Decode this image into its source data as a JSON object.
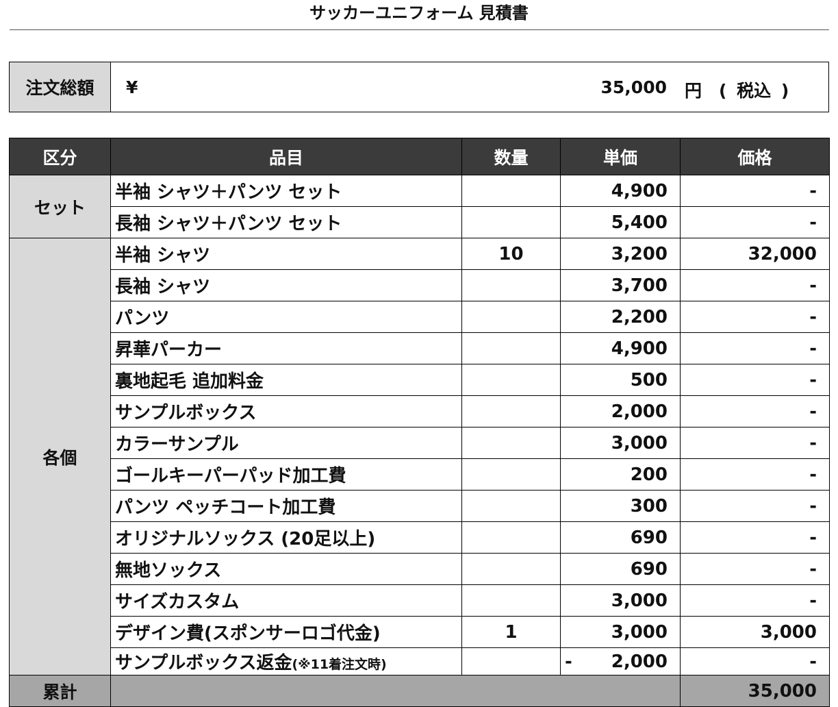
{
  "title": "サッカーユニフォーム 見積書",
  "total": {
    "label": "注文総額",
    "currency": "¥",
    "amount": "35,000",
    "unit": "円",
    "tax_note": "( 税込 )"
  },
  "table": {
    "headers": [
      "区分",
      "品目",
      "数量",
      "単価",
      "価格"
    ],
    "groups": [
      {
        "category": "セット",
        "rows": [
          {
            "item": "半袖 シャツ＋パンツ セット",
            "note": "",
            "qty": "",
            "neg": "",
            "unit_price": "4,900",
            "price": "-"
          },
          {
            "item": "長袖 シャツ＋パンツ セット",
            "note": "",
            "qty": "",
            "neg": "",
            "unit_price": "5,400",
            "price": "-"
          }
        ]
      },
      {
        "category": "各個",
        "rows": [
          {
            "item": "半袖 シャツ",
            "note": "",
            "qty": "10",
            "neg": "",
            "unit_price": "3,200",
            "price": "32,000"
          },
          {
            "item": "長袖 シャツ",
            "note": "",
            "qty": "",
            "neg": "",
            "unit_price": "3,700",
            "price": "-"
          },
          {
            "item": "パンツ",
            "note": "",
            "qty": "",
            "neg": "",
            "unit_price": "2,200",
            "price": "-"
          },
          {
            "item": "昇華パーカー",
            "note": "",
            "qty": "",
            "neg": "",
            "unit_price": "4,900",
            "price": "-"
          },
          {
            "item": "裏地起毛 追加料金",
            "note": "",
            "qty": "",
            "neg": "",
            "unit_price": "500",
            "price": "-"
          },
          {
            "item": "サンプルボックス",
            "note": "",
            "qty": "",
            "neg": "",
            "unit_price": "2,000",
            "price": "-"
          },
          {
            "item": "カラーサンプル",
            "note": "",
            "qty": "",
            "neg": "",
            "unit_price": "3,000",
            "price": "-"
          },
          {
            "item": "ゴールキーパーパッド加工費",
            "note": "",
            "qty": "",
            "neg": "",
            "unit_price": "200",
            "price": "-"
          },
          {
            "item": "パンツ ペッチコート加工費",
            "note": "",
            "qty": "",
            "neg": "",
            "unit_price": "300",
            "price": "-"
          },
          {
            "item": "オリジナルソックス (20足以上)",
            "note": "",
            "qty": "",
            "neg": "",
            "unit_price": "690",
            "price": "-"
          },
          {
            "item": "無地ソックス",
            "note": "",
            "qty": "",
            "neg": "",
            "unit_price": "690",
            "price": "-"
          },
          {
            "item": "サイズカスタム",
            "note": "",
            "qty": "",
            "neg": "",
            "unit_price": "3,000",
            "price": "-"
          },
          {
            "item": "デザイン費(スポンサーロゴ代金)",
            "note": "",
            "qty": "1",
            "neg": "",
            "unit_price": "3,000",
            "price": "3,000"
          },
          {
            "item": "サンプルボックス返金",
            "note": "(※11着注文時)",
            "qty": "",
            "neg": "-",
            "unit_price": "2,000",
            "price": "-"
          }
        ]
      }
    ],
    "summary": {
      "label": "累計",
      "price": "35,000"
    }
  }
}
